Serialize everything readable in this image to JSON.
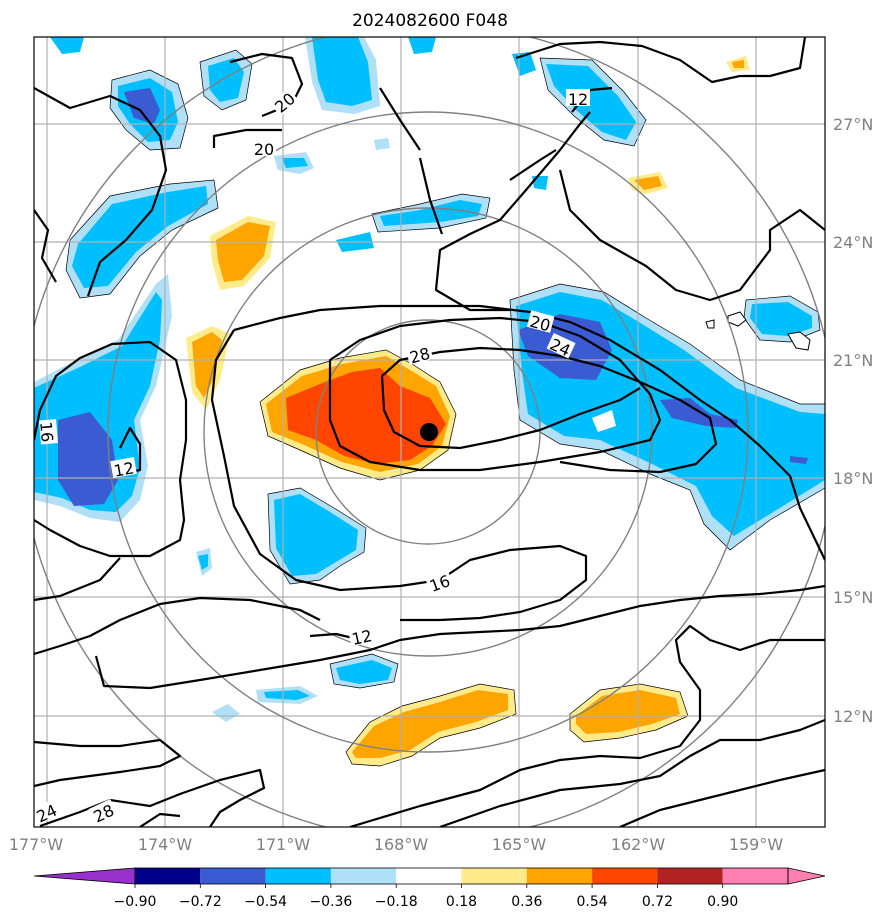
{
  "title": "2024082600 F048",
  "map": {
    "lon_ticks": [
      "177°W",
      "174°W",
      "171°W",
      "168°W",
      "165°W",
      "162°W",
      "159°W"
    ],
    "lat_ticks": [
      "27°N",
      "24°N",
      "21°N",
      "18°N",
      "15°N",
      "12°N"
    ],
    "contour_labels": [
      "20",
      "20",
      "12",
      "20",
      "24",
      "28",
      "16",
      "12",
      "16",
      "12",
      "24",
      "28"
    ],
    "center_marker": "storm-center"
  },
  "colorbar": {
    "ticks": [
      "−0.90",
      "−0.72",
      "−0.54",
      "−0.36",
      "−0.18",
      "0.18",
      "0.36",
      "0.54",
      "0.72",
      "0.90"
    ],
    "colors": [
      "#9932cc",
      "#00008b",
      "#3b5bd3",
      "#00bfff",
      "#b0e0f8",
      "#ffffff",
      "#ffeb8a",
      "#ffa500",
      "#ff4500",
      "#b22222",
      "#ff7fb0"
    ]
  }
}
